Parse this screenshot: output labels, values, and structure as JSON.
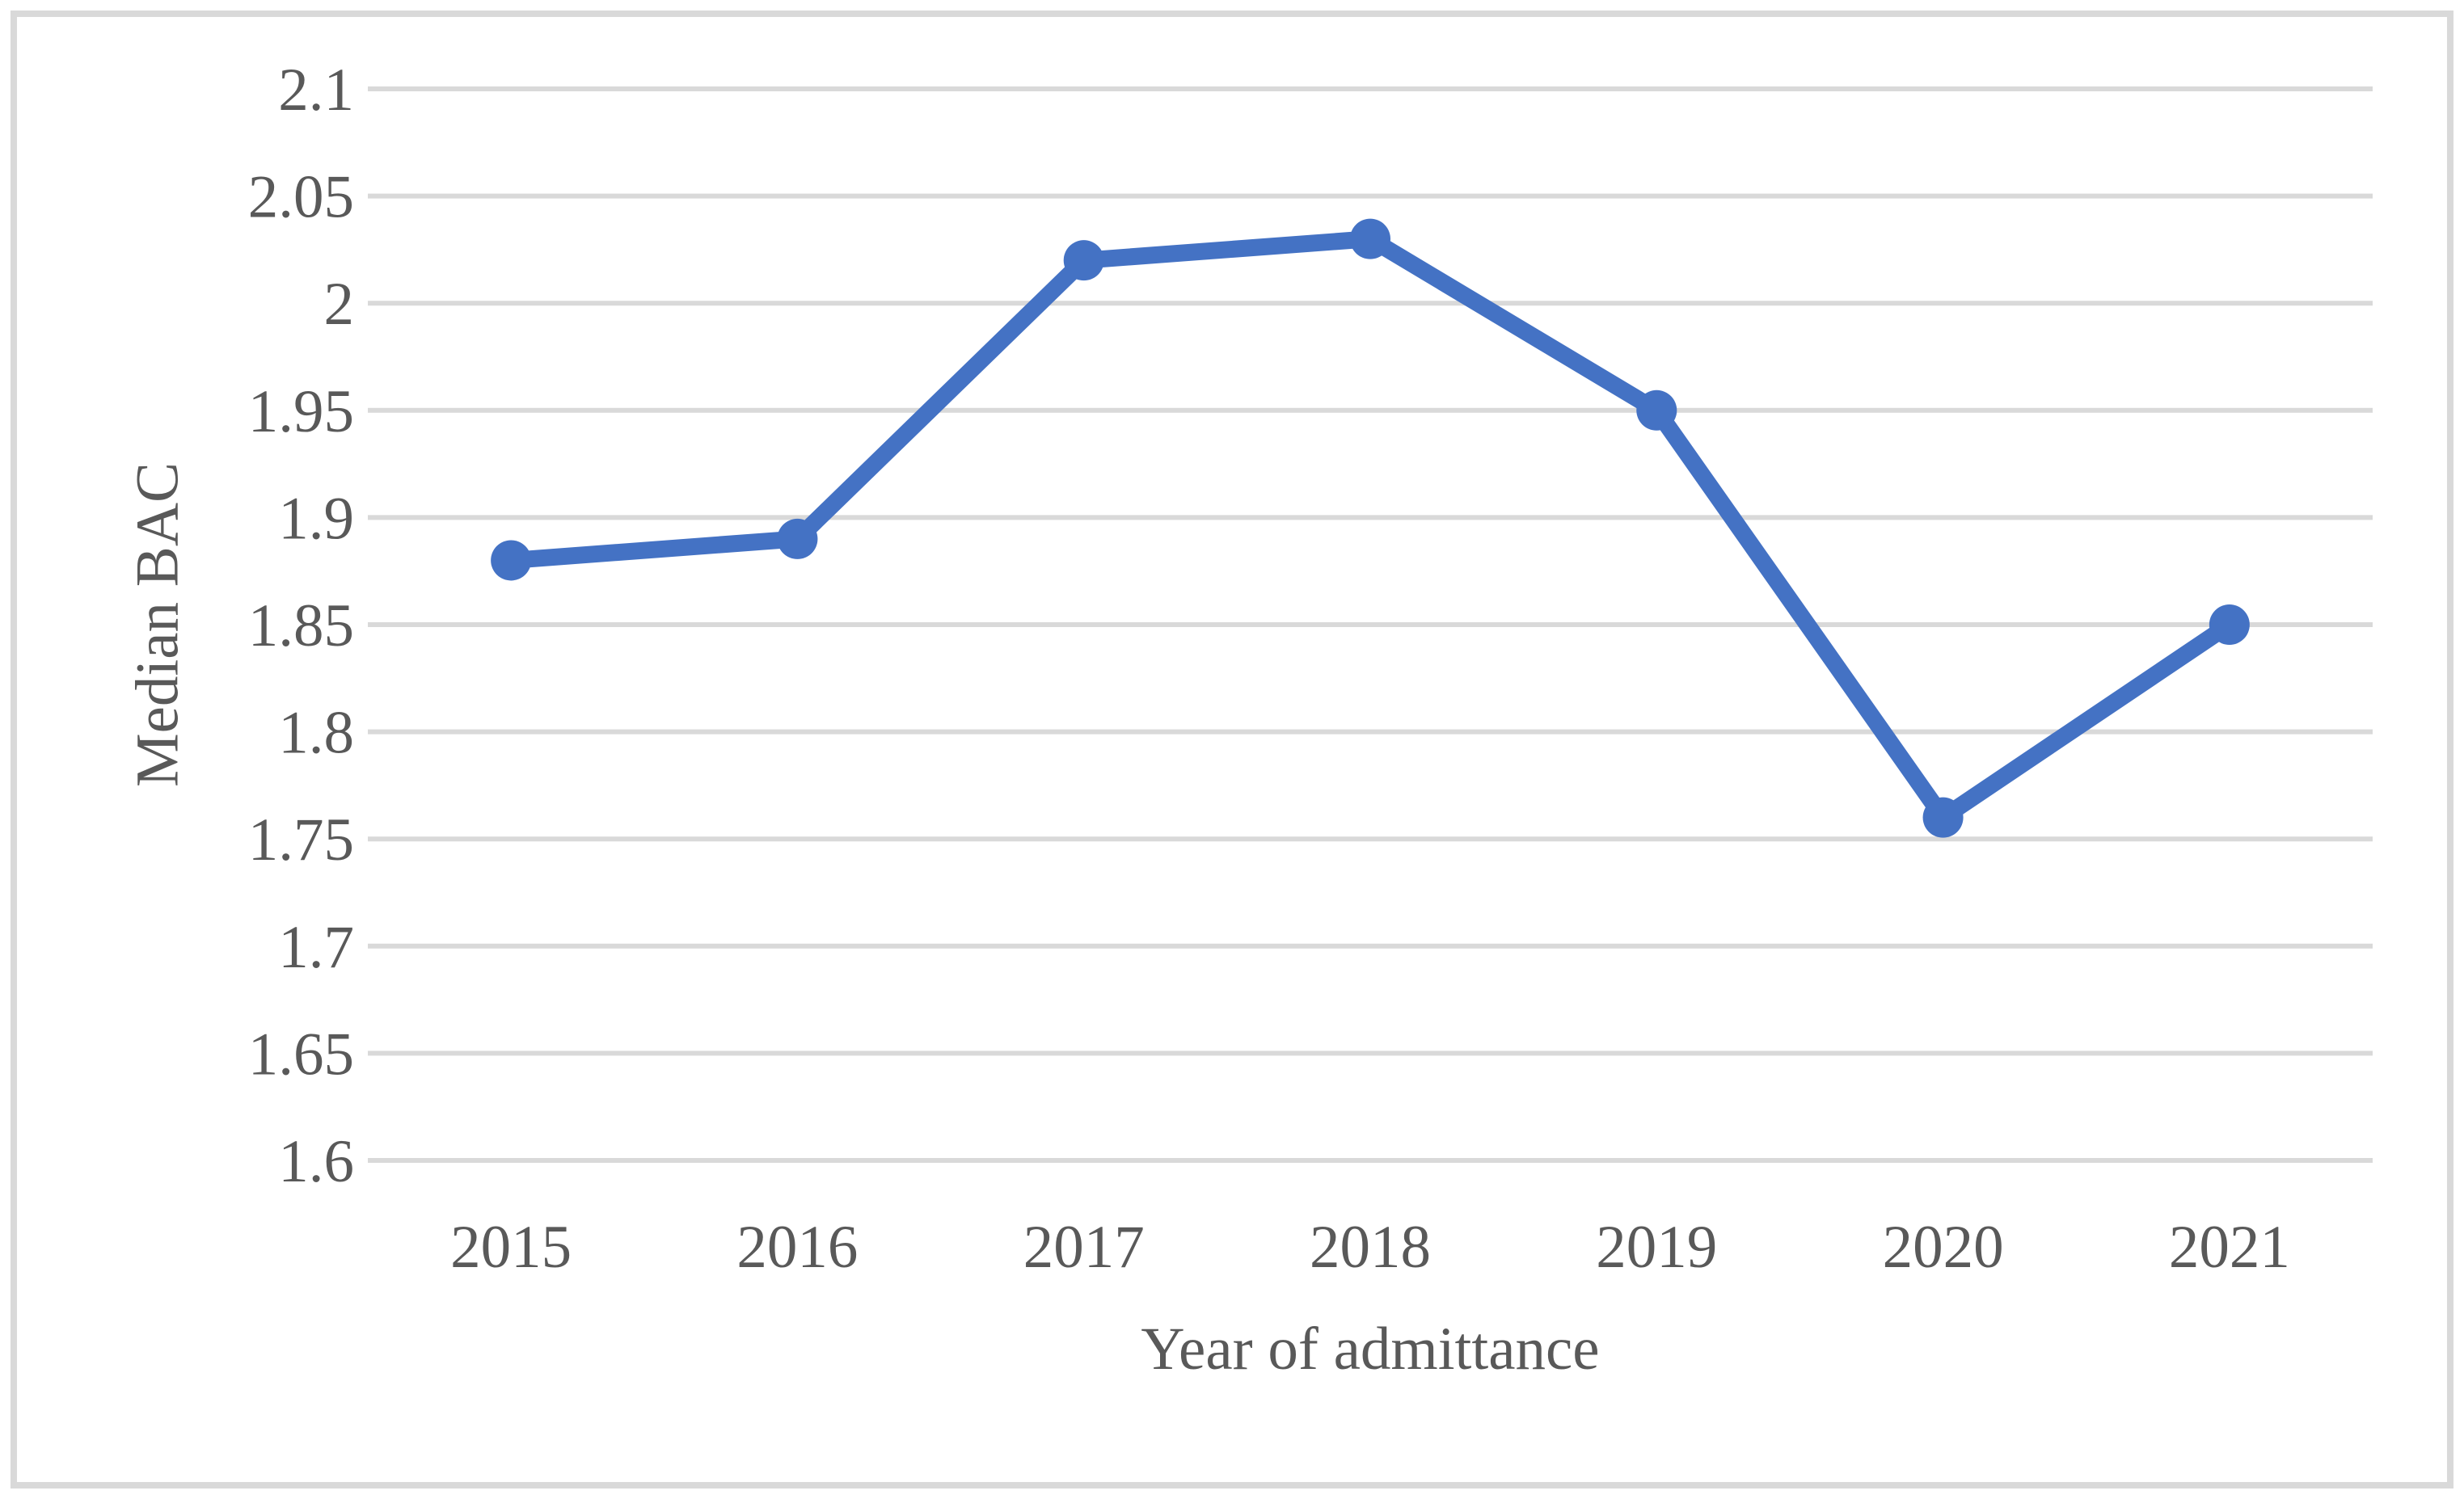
{
  "figure": {
    "background": "#ffffff",
    "border_color": "#d9d9d9"
  },
  "chart_data": {
    "type": "line",
    "title": "",
    "categories": [
      "2015",
      "2016",
      "2017",
      "2018",
      "2019",
      "2020",
      "2021"
    ],
    "series": [
      {
        "name": "Median BAC",
        "color": "#4472c4",
        "values": [
          1.88,
          1.89,
          2.02,
          2.03,
          1.95,
          1.76,
          1.85
        ]
      }
    ],
    "xlabel": "Year of admittance",
    "ylabel": "Median BAC",
    "ylim": [
      1.6,
      2.1
    ],
    "ytick_step": 0.05,
    "ytick_labels": [
      "1.6",
      "1.65",
      "1.7",
      "1.75",
      "1.8",
      "1.85",
      "1.9",
      "1.95",
      "2",
      "2.05",
      "2.1"
    ],
    "grid": "horizontal",
    "gridline_color": "#d9d9d9",
    "text_color": "#595959",
    "legend": "none",
    "marker": "circle"
  }
}
